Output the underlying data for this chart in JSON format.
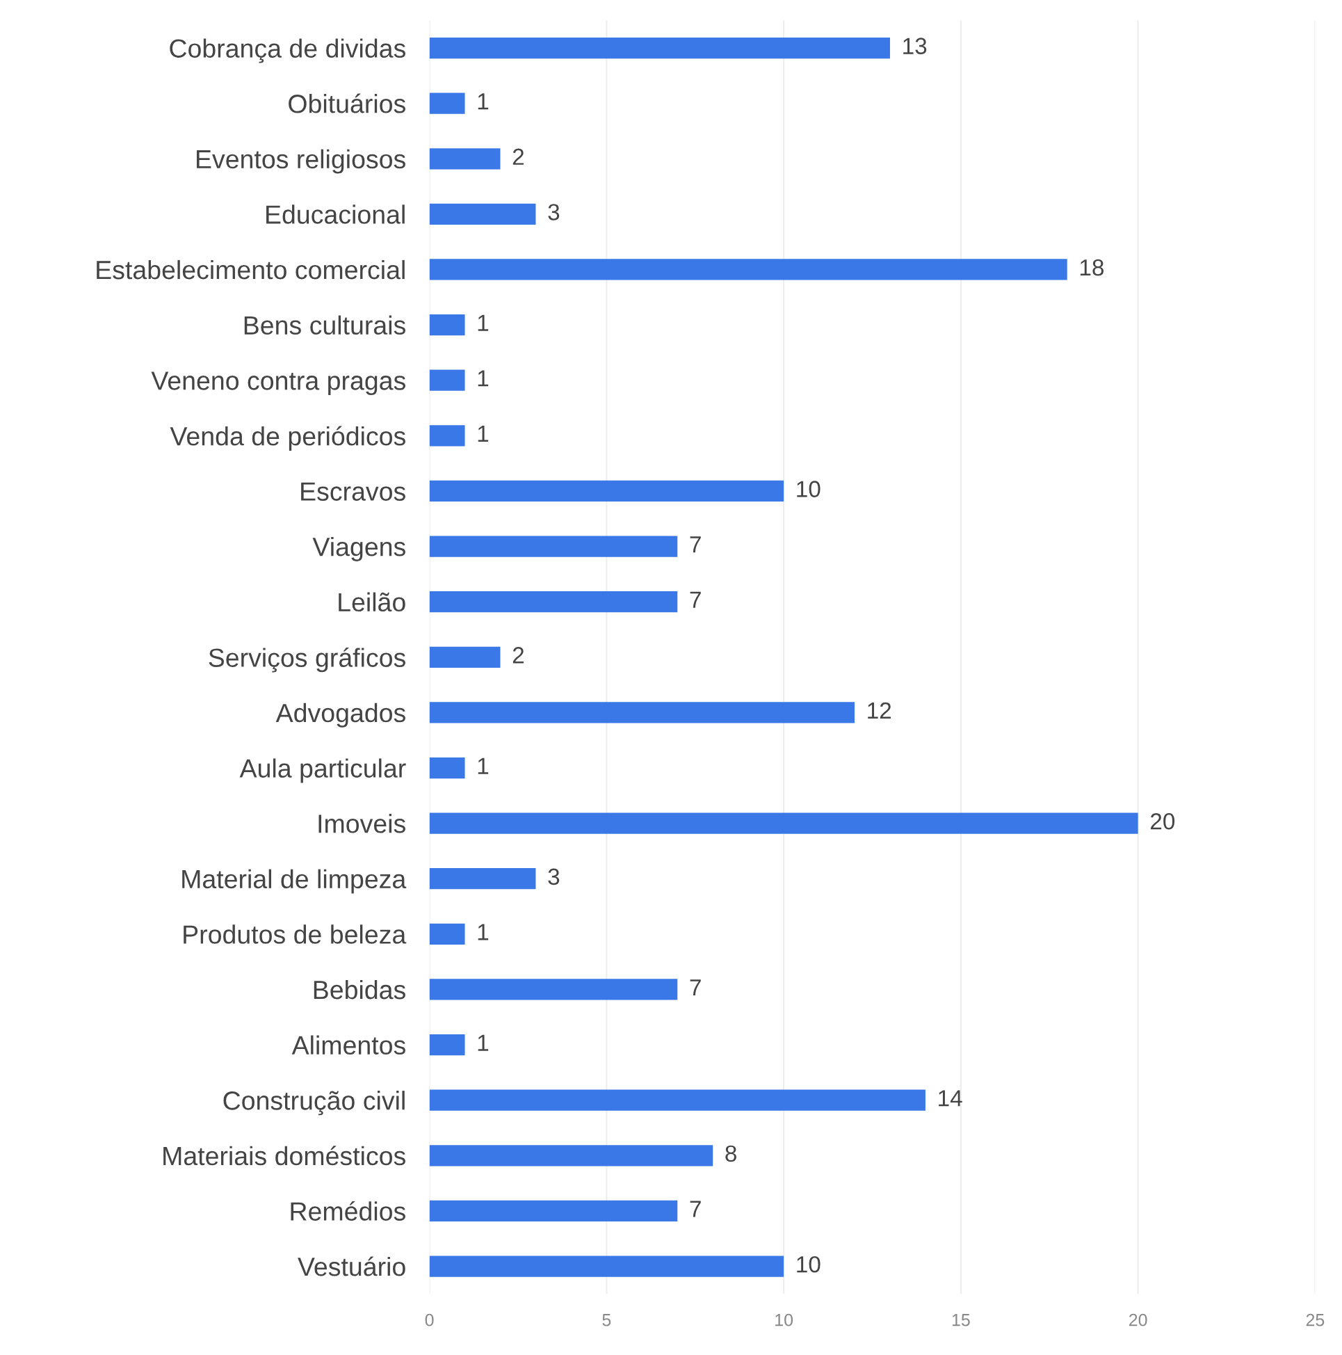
{
  "chart_data": {
    "type": "bar",
    "orientation": "horizontal",
    "categories": [
      "Cobrança de dividas",
      "Obituários",
      "Eventos religiosos",
      "Educacional",
      "Estabelecimento comercial",
      "Bens culturais",
      "Veneno contra pragas",
      "Venda de periódicos",
      "Escravos",
      "Viagens",
      "Leilão",
      "Serviços gráficos",
      "Advogados",
      "Aula particular",
      "Imoveis",
      "Material de limpeza",
      "Produtos de beleza",
      "Bebidas",
      "Alimentos",
      "Construção civil",
      "Materiais domésticos",
      "Remédios",
      "Vestuário"
    ],
    "values": [
      13,
      1,
      2,
      3,
      18,
      1,
      1,
      1,
      10,
      7,
      7,
      2,
      12,
      1,
      20,
      3,
      1,
      7,
      1,
      14,
      8,
      7,
      10
    ],
    "color": "#3b78e7",
    "xlim": [
      0,
      25
    ],
    "xticks": [
      0,
      5,
      10,
      15,
      20,
      25
    ],
    "grid": "x",
    "data_labels": true
  }
}
